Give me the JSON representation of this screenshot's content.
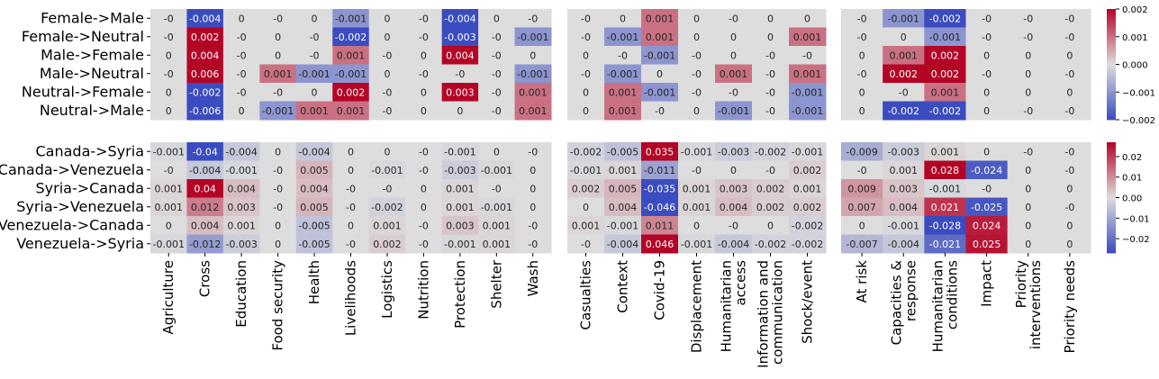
{
  "colors": {
    "neg": "#3b4cc0",
    "mid": "#dddddd",
    "pos": "#b40426"
  },
  "chart_data": [
    {
      "type": "heatmap",
      "rows": [
        "Female->Male",
        "Female->Neutral",
        "Male->Female",
        "Male->Neutral",
        "Neutral->Female",
        "Neutral->Male"
      ],
      "panels": [
        {
          "columns": [
            "Agriculture",
            "Cross",
            "Education",
            "Food security",
            "Health",
            "Livelihoods",
            "Logistics",
            "Nutrition",
            "Protection",
            "Shelter",
            "Wash"
          ],
          "values": [
            [
              0,
              -0.004,
              0,
              0,
              0,
              -0.001,
              0,
              0,
              -0.004,
              0,
              0
            ],
            [
              0,
              0.002,
              0,
              0,
              0,
              -0.002,
              0,
              0,
              -0.003,
              0,
              -0.001
            ],
            [
              0,
              0.004,
              0,
              0,
              0,
              0.001,
              0,
              0,
              0.004,
              0,
              0
            ],
            [
              0,
              0.006,
              0,
              0.001,
              -0.001,
              -0.001,
              0,
              0,
              0,
              0,
              -0.001
            ],
            [
              0,
              -0.002,
              0,
              0,
              0,
              0.002,
              0,
              0,
              0.003,
              0,
              0.001
            ],
            [
              0,
              -0.006,
              0,
              -0.001,
              0.001,
              0.001,
              0,
              0,
              0,
              0,
              0.001
            ]
          ],
          "labels": [
            [
              "-0",
              "-0.004",
              "0",
              "-0",
              "0",
              "-0.001",
              "0",
              "-0",
              "-0.004",
              "0",
              "-0"
            ],
            [
              "-0",
              "0.002",
              "-0",
              "0",
              "-0",
              "-0.002",
              "0",
              "-0",
              "-0.003",
              "-0",
              "-0.001"
            ],
            [
              "0",
              "0.004",
              "-0",
              "0",
              "-0",
              "0.001",
              "-0",
              "0",
              "0.004",
              "-0",
              "0"
            ],
            [
              "-0",
              "0.006",
              "-0",
              "0.001",
              "-0.001",
              "-0.001",
              "0",
              "-0",
              "-0",
              "-0",
              "-0.001"
            ],
            [
              "0",
              "-0.002",
              "-0",
              "-0",
              "0",
              "0.002",
              "-0",
              "0",
              "0.003",
              "-0",
              "0.001"
            ],
            [
              "0",
              "-0.006",
              "0",
              "-0.001",
              "0.001",
              "0.001",
              "-0",
              "0",
              "0",
              "-0",
              "0.001"
            ]
          ]
        },
        {
          "columns": [
            "Casualties",
            "Context",
            "Covid-19",
            "Displacement",
            "Humanitarian\naccess",
            "Information and\ncommunication",
            "Shock/event"
          ],
          "values": [
            [
              0,
              0,
              0.001,
              0,
              0,
              0,
              0
            ],
            [
              0,
              -0.001,
              0.001,
              0,
              0,
              0,
              0.001
            ],
            [
              0,
              0,
              -0.001,
              0,
              0,
              0,
              0
            ],
            [
              0,
              -0.001,
              0,
              0,
              0.001,
              0,
              0.001
            ],
            [
              0,
              0.001,
              -0.001,
              0,
              0,
              0,
              -0.001
            ],
            [
              0,
              0.001,
              0,
              0,
              -0.001,
              0,
              -0.001
            ]
          ],
          "labels": [
            [
              "-0",
              "0",
              "0.001",
              "0",
              "-0",
              "0",
              "0"
            ],
            [
              "-0",
              "-0.001",
              "0.001",
              "0",
              "0",
              "0",
              "0.001"
            ],
            [
              "0",
              "-0",
              "-0.001",
              "-0",
              "0",
              "-0",
              "-0"
            ],
            [
              "-0",
              "-0.001",
              "0",
              "-0",
              "0.001",
              "-0",
              "0.001"
            ],
            [
              "0",
              "0.001",
              "-0.001",
              "-0",
              "-0",
              "-0",
              "-0.001"
            ],
            [
              "0",
              "0.001",
              "-0",
              "0",
              "-0.001",
              "-0",
              "-0.001"
            ]
          ]
        },
        {
          "columns": [
            "At risk",
            "Capacities &\nresponse",
            "Humanitarian\nconditions",
            "Impact",
            "Priority\ninterventions",
            "Priority needs"
          ],
          "values": [
            [
              0,
              -0.001,
              -0.002,
              0,
              0,
              0
            ],
            [
              0,
              0,
              -0.001,
              0,
              0,
              0
            ],
            [
              0,
              0.001,
              0.002,
              0,
              0,
              0
            ],
            [
              0,
              0.002,
              0.002,
              0,
              0,
              0
            ],
            [
              0,
              0,
              0.001,
              0,
              0,
              0
            ],
            [
              0,
              -0.002,
              -0.002,
              0,
              0,
              0
            ]
          ],
          "labels": [
            [
              "-0",
              "-0.001",
              "-0.002",
              "-0",
              "-0",
              "-0"
            ],
            [
              "-0",
              "0",
              "-0.001",
              "-0",
              "-0",
              "-0"
            ],
            [
              "0",
              "0.001",
              "0.002",
              "0",
              "0",
              "0"
            ],
            [
              "-0",
              "0.002",
              "0.002",
              "-0",
              "0",
              "-0"
            ],
            [
              "0",
              "-0",
              "0.001",
              "0",
              "0",
              "0"
            ],
            [
              "0",
              "-0.002",
              "-0.002",
              "0",
              "-0",
              "-0"
            ]
          ]
        }
      ],
      "colorbar": {
        "range": [
          -0.002,
          0.002
        ],
        "ticks": [
          -0.002,
          -0.001,
          0,
          0.001,
          0.002
        ],
        "tick_labels": [
          "−0.002",
          "−0.001",
          "0.000",
          "0.001",
          "0.002"
        ]
      }
    },
    {
      "type": "heatmap",
      "rows": [
        "Canada->Syria",
        "Canada->Venezuela",
        "Syria->Canada",
        "Syria->Venezuela",
        "Venezuela->Canada",
        "Venezuela->Syria"
      ],
      "panels": [
        {
          "columns": [
            "Agriculture",
            "Cross",
            "Education",
            "Food security",
            "Health",
            "Livelihoods",
            "Logistics",
            "Nutrition",
            "Protection",
            "Shelter",
            "Wash"
          ],
          "values": [
            [
              -0.001,
              -0.04,
              -0.004,
              0,
              -0.004,
              0,
              0,
              0,
              -0.001,
              0,
              0
            ],
            [
              0,
              -0.004,
              -0.001,
              0,
              0.005,
              0,
              -0.001,
              0,
              -0.003,
              -0.001,
              0
            ],
            [
              0.001,
              0.04,
              0.004,
              0,
              0.004,
              0,
              0,
              0,
              0.001,
              0,
              0
            ],
            [
              0.001,
              0.012,
              0.003,
              0,
              0.005,
              0,
              -0.002,
              0,
              0.001,
              -0.001,
              0
            ],
            [
              0,
              0.004,
              0.001,
              0,
              -0.005,
              0,
              0.001,
              0,
              0.003,
              0.001,
              0
            ],
            [
              -0.001,
              -0.012,
              -0.003,
              0,
              -0.005,
              0,
              0.002,
              0,
              -0.001,
              0.001,
              0
            ]
          ],
          "labels": [
            [
              "-0.001",
              "-0.04",
              "-0.004",
              "0",
              "-0.004",
              "0",
              "0",
              "-0",
              "-0.001",
              "0",
              "-0"
            ],
            [
              "-0",
              "-0.004",
              "-0.001",
              "-0",
              "0.005",
              "0",
              "-0.001",
              "-0",
              "-0.003",
              "-0.001",
              "0"
            ],
            [
              "0.001",
              "0.04",
              "0.004",
              "-0",
              "0.004",
              "-0",
              "-0",
              "0",
              "0.001",
              "-0",
              "0"
            ],
            [
              "0.001",
              "0.012",
              "0.003",
              "-0",
              "0.005",
              "-0",
              "-0.002",
              "0",
              "0.001",
              "-0.001",
              "0"
            ],
            [
              "0",
              "0.004",
              "0.001",
              "0",
              "-0.005",
              "0",
              "0.001",
              "-0",
              "0.003",
              "0.001",
              "-0"
            ],
            [
              "-0.001",
              "-0.012",
              "-0.003",
              "0",
              "-0.005",
              "-0",
              "0.002",
              "-0",
              "-0.001",
              "0.001",
              "-0"
            ]
          ]
        },
        {
          "columns": [
            "Casualties",
            "Context",
            "Covid-19",
            "Displacement",
            "Humanitarian\naccess",
            "Information and\ncommunication",
            "Shock/event"
          ],
          "values": [
            [
              -0.002,
              -0.005,
              0.035,
              -0.001,
              -0.003,
              -0.002,
              -0.001
            ],
            [
              -0.001,
              0.001,
              -0.011,
              0,
              0,
              0,
              0.002
            ],
            [
              0.002,
              0.005,
              -0.035,
              0.001,
              0.003,
              0.002,
              0.001
            ],
            [
              0,
              0.004,
              -0.046,
              0.001,
              0.004,
              0.002,
              0.002
            ],
            [
              0.001,
              -0.001,
              0.011,
              0,
              0,
              0,
              -0.002
            ],
            [
              0,
              -0.004,
              0.046,
              -0.001,
              -0.004,
              -0.002,
              -0.002
            ]
          ],
          "labels": [
            [
              "-0.002",
              "-0.005",
              "0.035",
              "-0.001",
              "-0.003",
              "-0.002",
              "-0.001"
            ],
            [
              "-0.001",
              "0.001",
              "-0.011",
              "-0",
              "0",
              "-0",
              "0.002"
            ],
            [
              "0.002",
              "0.005",
              "-0.035",
              "0.001",
              "0.003",
              "0.002",
              "0.001"
            ],
            [
              "0",
              "0.004",
              "-0.046",
              "0.001",
              "0.004",
              "0.002",
              "0.002"
            ],
            [
              "0.001",
              "-0.001",
              "0.011",
              "0",
              "-0",
              "0",
              "-0.002"
            ],
            [
              "-0",
              "-0.004",
              "0.046",
              "-0.001",
              "-0.004",
              "-0.002",
              "-0.002"
            ]
          ]
        },
        {
          "columns": [
            "At risk",
            "Capacities &\nresponse",
            "Humanitarian\nconditions",
            "Impact",
            "Priority\ninterventions",
            "Priority needs"
          ],
          "values": [
            [
              -0.009,
              -0.003,
              0.001,
              0,
              0,
              0
            ],
            [
              0,
              0.001,
              0.028,
              -0.024,
              0,
              0
            ],
            [
              0.009,
              0.003,
              -0.001,
              0,
              0,
              0
            ],
            [
              0.007,
              0.004,
              0.021,
              -0.025,
              0,
              0
            ],
            [
              0,
              -0.001,
              -0.028,
              0.024,
              0,
              0
            ],
            [
              -0.007,
              -0.004,
              -0.021,
              0.025,
              0,
              0
            ]
          ],
          "labels": [
            [
              "-0.009",
              "-0.003",
              "0.001",
              "0",
              "-0",
              "-0"
            ],
            [
              "-0",
              "0.001",
              "0.028",
              "-0.024",
              "0",
              "-0"
            ],
            [
              "0.009",
              "0.003",
              "-0.001",
              "-0",
              "0",
              "0"
            ],
            [
              "0.007",
              "0.004",
              "0.021",
              "-0.025",
              "0",
              "-0"
            ],
            [
              "0",
              "-0.001",
              "-0.028",
              "0.024",
              "0",
              "0"
            ],
            [
              "-0.007",
              "-0.004",
              "-0.021",
              "0.025",
              "0",
              "0"
            ]
          ]
        }
      ],
      "colorbar": {
        "range": [
          -0.027,
          0.027
        ],
        "ticks": [
          -0.02,
          -0.01,
          0,
          0.01,
          0.02
        ],
        "tick_labels": [
          "−0.02",
          "−0.01",
          "0.00",
          "0.01",
          "0.02"
        ]
      }
    }
  ]
}
